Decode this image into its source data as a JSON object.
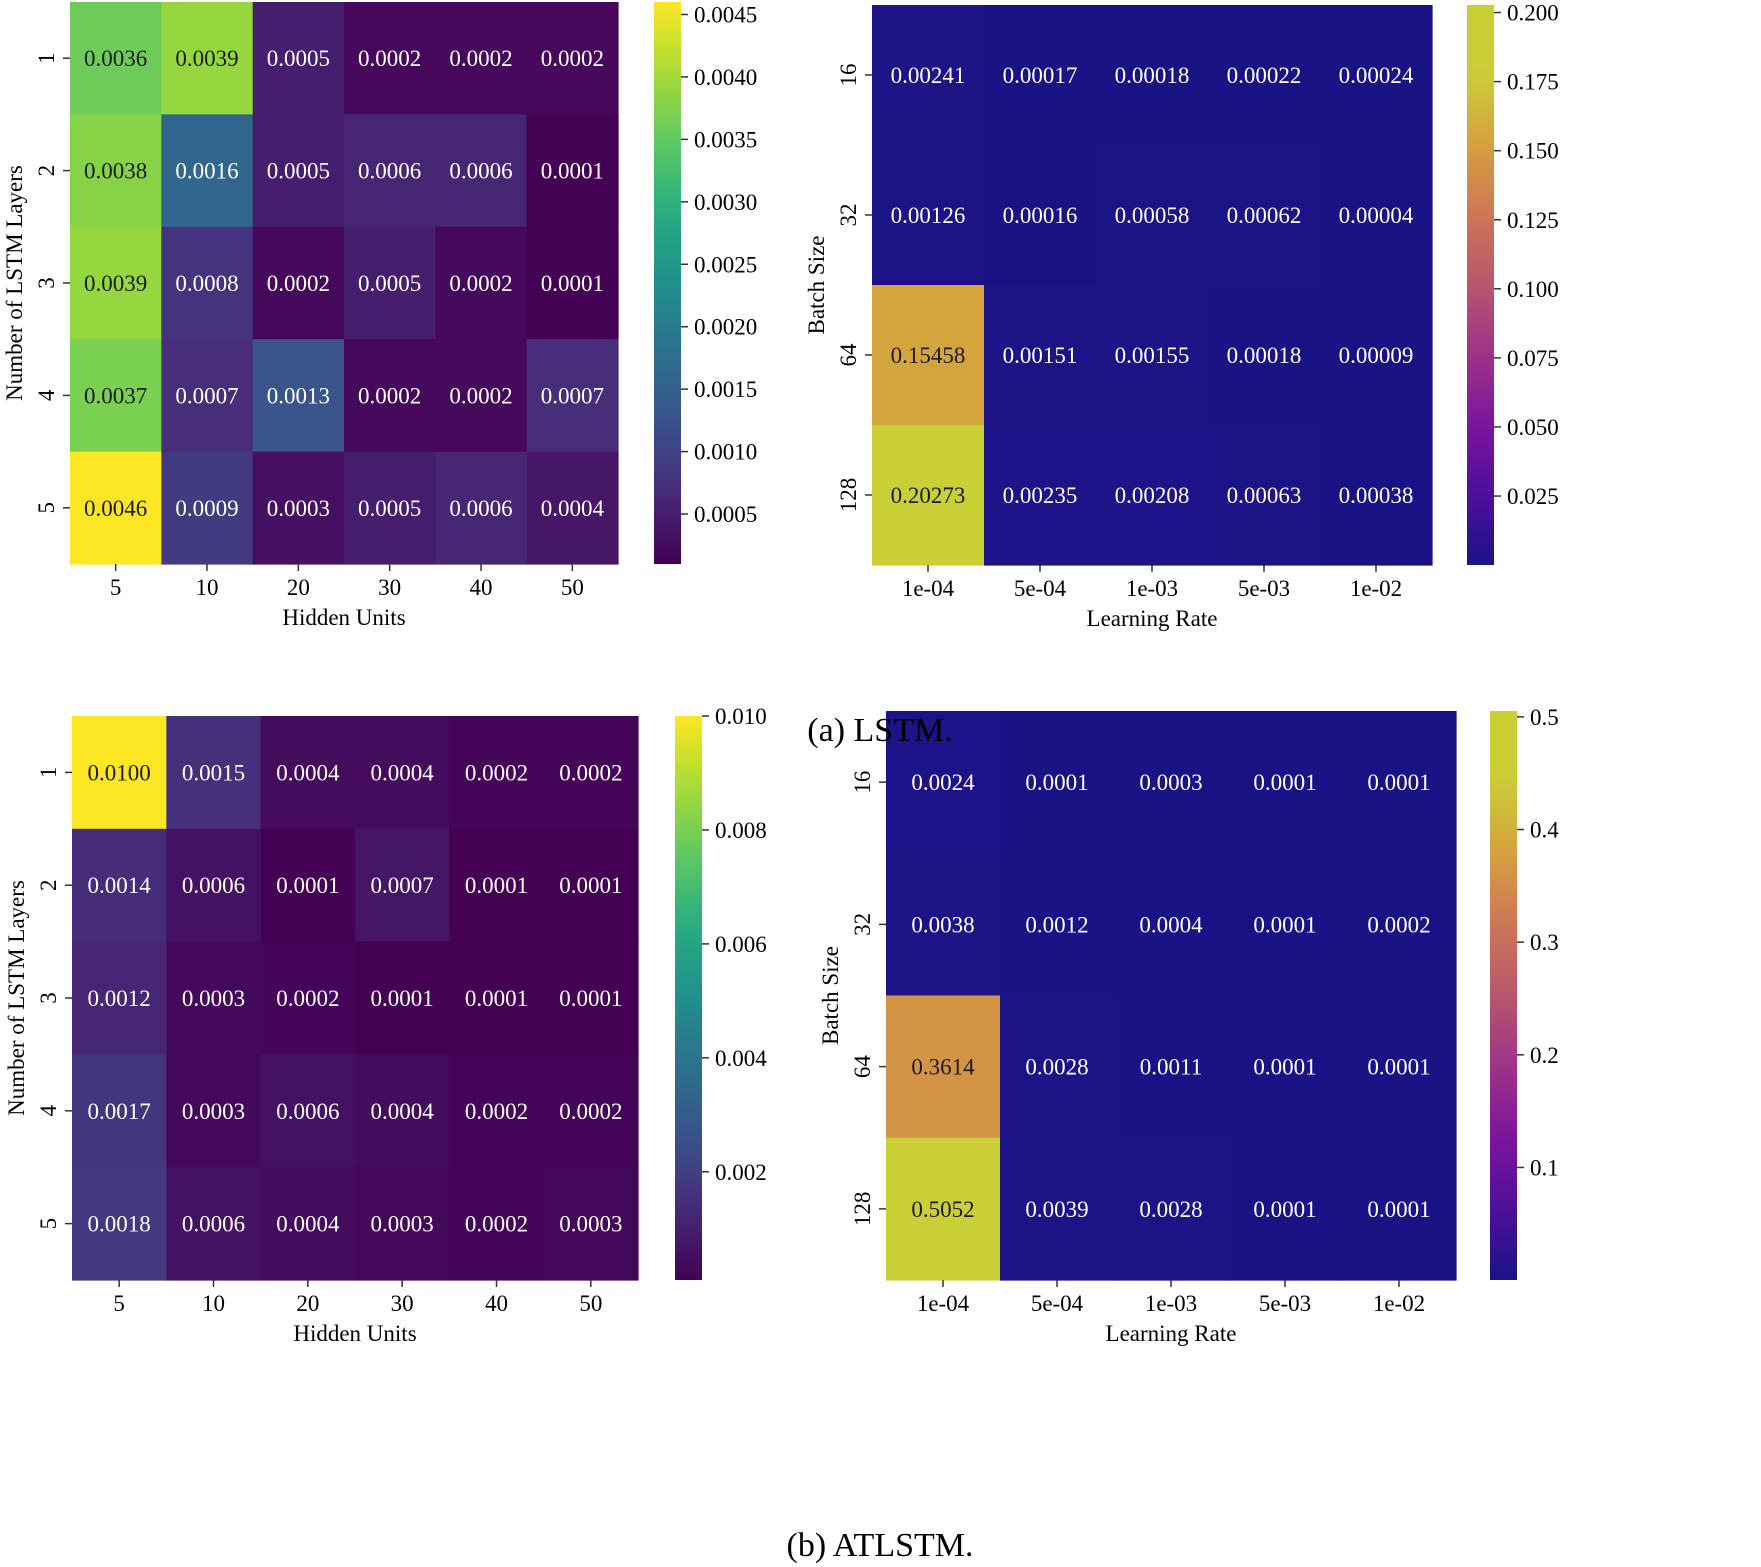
{
  "captions": {
    "a": "(a) LSTM.",
    "b": "(b) ATLSTM."
  },
  "chart_data": [
    {
      "type": "heatmap",
      "id": "lstm-layers-units",
      "title": "",
      "xlabel": "Hidden Units",
      "ylabel": "Number of LSTM Layers",
      "x_categories": [
        "5",
        "10",
        "20",
        "30",
        "40",
        "50"
      ],
      "y_categories": [
        "1",
        "2",
        "3",
        "4",
        "5"
      ],
      "values": [
        [
          0.0036,
          0.0039,
          0.0005,
          0.0002,
          0.0002,
          0.0002
        ],
        [
          0.0038,
          0.0016,
          0.0005,
          0.0006,
          0.0006,
          0.0001
        ],
        [
          0.0039,
          0.0008,
          0.0002,
          0.0005,
          0.0002,
          0.0001
        ],
        [
          0.0037,
          0.0007,
          0.0013,
          0.0002,
          0.0002,
          0.0007
        ],
        [
          0.0046,
          0.0009,
          0.0003,
          0.0005,
          0.0006,
          0.0004
        ]
      ],
      "labels": [
        [
          "0.0036",
          "0.0039",
          "0.0005",
          "0.0002",
          "0.0002",
          "0.0002"
        ],
        [
          "0.0038",
          "0.0016",
          "0.0005",
          "0.0006",
          "0.0006",
          "0.0001"
        ],
        [
          "0.0039",
          "0.0008",
          "0.0002",
          "0.0005",
          "0.0002",
          "0.0001"
        ],
        [
          "0.0037",
          "0.0007",
          "0.0013",
          "0.0002",
          "0.0002",
          "0.0007"
        ],
        [
          "0.0046",
          "0.0009",
          "0.0003",
          "0.0005",
          "0.0006",
          "0.0004"
        ]
      ],
      "colormap": "viridis",
      "vmin": 0.0001,
      "vmax": 0.0046,
      "colorbar_ticks": [
        0.0005,
        0.001,
        0.0015,
        0.002,
        0.0025,
        0.003,
        0.0035,
        0.004,
        0.0045
      ],
      "colorbar_tick_labels": [
        "0.0005",
        "0.0010",
        "0.0015",
        "0.0020",
        "0.0025",
        "0.0030",
        "0.0035",
        "0.0040",
        "0.0045"
      ]
    },
    {
      "type": "heatmap",
      "id": "lstm-batch-lr",
      "title": "",
      "xlabel": "Learning Rate",
      "ylabel": "Batch Size",
      "x_categories": [
        "1e-04",
        "5e-04",
        "1e-03",
        "5e-03",
        "1e-02"
      ],
      "y_categories": [
        "16",
        "32",
        "64",
        "128"
      ],
      "values": [
        [
          0.00241,
          0.00017,
          0.00018,
          0.00022,
          0.00024
        ],
        [
          0.00126,
          0.00016,
          0.00058,
          0.00062,
          4e-05
        ],
        [
          0.15458,
          0.00151,
          0.00155,
          0.00018,
          9e-05
        ],
        [
          0.20273,
          0.00235,
          0.00208,
          0.00063,
          0.00038
        ]
      ],
      "labels": [
        [
          "0.00241",
          "0.00017",
          "0.00018",
          "0.00022",
          "0.00024"
        ],
        [
          "0.00126",
          "0.00016",
          "0.00058",
          "0.00062",
          "0.00004"
        ],
        [
          "0.15458",
          "0.00151",
          "0.00155",
          "0.00018",
          "0.00009"
        ],
        [
          "0.20273",
          "0.00235",
          "0.00208",
          "0.00063",
          "0.00038"
        ]
      ],
      "colormap": "plasma",
      "vmin": 4e-05,
      "vmax": 0.20273,
      "colorbar_ticks": [
        0.025,
        0.05,
        0.075,
        0.1,
        0.125,
        0.15,
        0.175,
        0.2
      ],
      "colorbar_tick_labels": [
        "0.025",
        "0.050",
        "0.075",
        "0.100",
        "0.125",
        "0.150",
        "0.175",
        "0.200"
      ]
    },
    {
      "type": "heatmap",
      "id": "atlstm-layers-units",
      "title": "",
      "xlabel": "Hidden Units",
      "ylabel": "Number of LSTM Layers",
      "x_categories": [
        "5",
        "10",
        "20",
        "30",
        "40",
        "50"
      ],
      "y_categories": [
        "1",
        "2",
        "3",
        "4",
        "5"
      ],
      "values": [
        [
          0.01,
          0.0015,
          0.0004,
          0.0004,
          0.0002,
          0.0002
        ],
        [
          0.0014,
          0.0006,
          0.0001,
          0.0007,
          0.0001,
          0.0001
        ],
        [
          0.0012,
          0.0003,
          0.0002,
          0.0001,
          0.0001,
          0.0001
        ],
        [
          0.0017,
          0.0003,
          0.0006,
          0.0004,
          0.0002,
          0.0002
        ],
        [
          0.0018,
          0.0006,
          0.0004,
          0.0003,
          0.0002,
          0.0003
        ]
      ],
      "labels": [
        [
          "0.0100",
          "0.0015",
          "0.0004",
          "0.0004",
          "0.0002",
          "0.0002"
        ],
        [
          "0.0014",
          "0.0006",
          "0.0001",
          "0.0007",
          "0.0001",
          "0.0001"
        ],
        [
          "0.0012",
          "0.0003",
          "0.0002",
          "0.0001",
          "0.0001",
          "0.0001"
        ],
        [
          "0.0017",
          "0.0003",
          "0.0006",
          "0.0004",
          "0.0002",
          "0.0002"
        ],
        [
          "0.0018",
          "0.0006",
          "0.0004",
          "0.0003",
          "0.0002",
          "0.0003"
        ]
      ],
      "colormap": "viridis",
      "vmin": 0.0001,
      "vmax": 0.01,
      "colorbar_ticks": [
        0.002,
        0.004,
        0.006,
        0.008,
        0.01
      ],
      "colorbar_tick_labels": [
        "0.002",
        "0.004",
        "0.006",
        "0.008",
        "0.010"
      ]
    },
    {
      "type": "heatmap",
      "id": "atlstm-batch-lr",
      "title": "",
      "xlabel": "Learning Rate",
      "ylabel": "Batch Size",
      "x_categories": [
        "1e-04",
        "5e-04",
        "1e-03",
        "5e-03",
        "1e-02"
      ],
      "y_categories": [
        "16",
        "32",
        "64",
        "128"
      ],
      "values": [
        [
          0.0024,
          0.0001,
          0.0003,
          0.0001,
          0.0001
        ],
        [
          0.0038,
          0.0012,
          0.0004,
          0.0001,
          0.0002
        ],
        [
          0.3614,
          0.0028,
          0.0011,
          0.0001,
          0.0001
        ],
        [
          0.5052,
          0.0039,
          0.0028,
          0.0001,
          0.0001
        ]
      ],
      "labels": [
        [
          "0.0024",
          "0.0001",
          "0.0003",
          "0.0001",
          "0.0001"
        ],
        [
          "0.0038",
          "0.0012",
          "0.0004",
          "0.0001",
          "0.0002"
        ],
        [
          "0.3614",
          "0.0028",
          "0.0011",
          "0.0001",
          "0.0001"
        ],
        [
          "0.5052",
          "0.0039",
          "0.0028",
          "0.0001",
          "0.0001"
        ]
      ],
      "colormap": "plasma",
      "vmin": 0.0001,
      "vmax": 0.5052,
      "colorbar_ticks": [
        0.1,
        0.2,
        0.3,
        0.4,
        0.5
      ],
      "colorbar_tick_labels": [
        "0.1",
        "0.2",
        "0.3",
        "0.4",
        "0.5"
      ]
    }
  ]
}
